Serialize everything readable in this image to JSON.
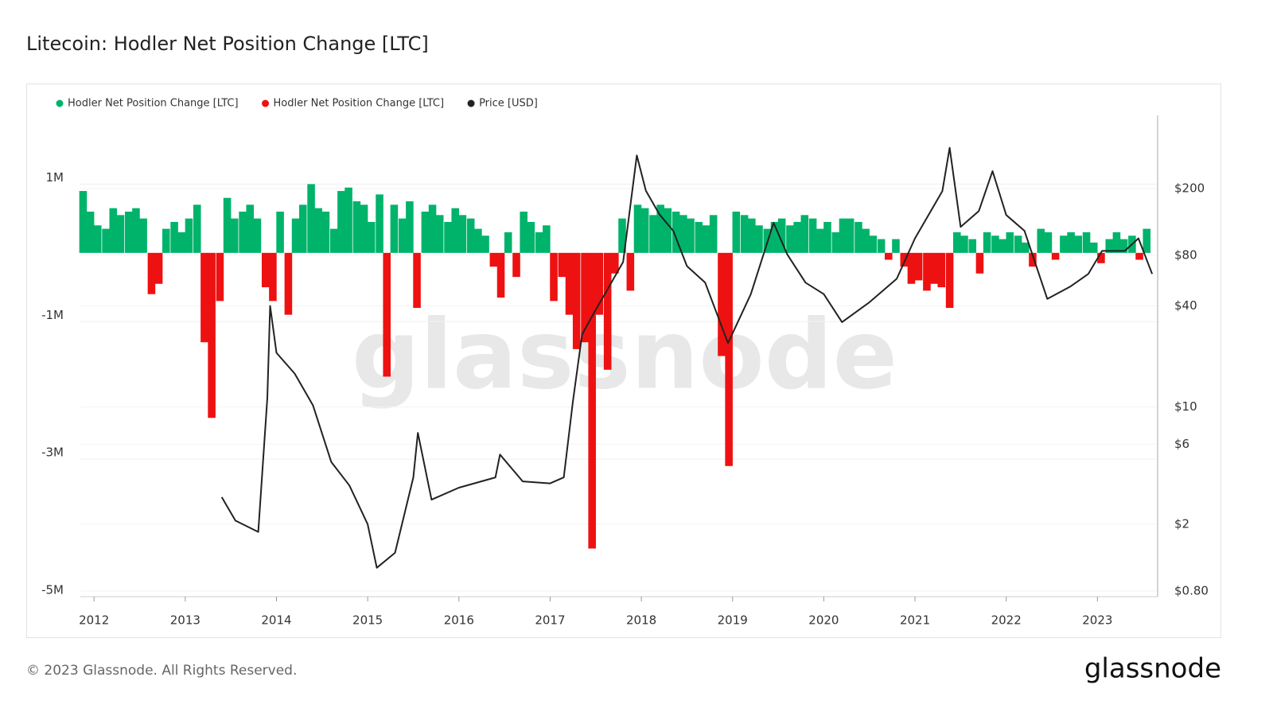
{
  "chart_data": {
    "type": "bar",
    "title": "Litecoin: Hodler Net Position Change [LTC]",
    "watermark": "glassnode",
    "footer": "© 2023 Glassnode. All Rights Reserved.",
    "logo": "glassnode",
    "x": [
      2011.88,
      2011.96,
      2012.04,
      2012.13,
      2012.21,
      2012.29,
      2012.38,
      2012.46,
      2012.54,
      2012.63,
      2012.71,
      2012.79,
      2012.88,
      2012.96,
      2013.04,
      2013.13,
      2013.21,
      2013.29,
      2013.38,
      2013.46,
      2013.54,
      2013.63,
      2013.71,
      2013.79,
      2013.88,
      2013.96,
      2014.04,
      2014.13,
      2014.21,
      2014.29,
      2014.38,
      2014.46,
      2014.54,
      2014.63,
      2014.71,
      2014.79,
      2014.88,
      2014.96,
      2015.04,
      2015.13,
      2015.21,
      2015.29,
      2015.38,
      2015.46,
      2015.54,
      2015.63,
      2015.71,
      2015.79,
      2015.88,
      2015.96,
      2016.04,
      2016.13,
      2016.21,
      2016.29,
      2016.38,
      2016.46,
      2016.54,
      2016.63,
      2016.71,
      2016.79,
      2016.88,
      2016.96,
      2017.04,
      2017.13,
      2017.21,
      2017.29,
      2017.38,
      2017.46,
      2017.54,
      2017.63,
      2017.71,
      2017.79,
      2017.88,
      2017.96,
      2018.04,
      2018.13,
      2018.21,
      2018.29,
      2018.38,
      2018.46,
      2018.54,
      2018.63,
      2018.71,
      2018.79,
      2018.88,
      2018.96,
      2019.04,
      2019.13,
      2019.21,
      2019.29,
      2019.38,
      2019.46,
      2019.54,
      2019.63,
      2019.71,
      2019.79,
      2019.88,
      2019.96,
      2020.04,
      2020.13,
      2020.21,
      2020.29,
      2020.38,
      2020.46,
      2020.54,
      2020.63,
      2020.71,
      2020.79,
      2020.88,
      2020.96,
      2021.04,
      2021.13,
      2021.21,
      2021.29,
      2021.38,
      2021.46,
      2021.54,
      2021.63,
      2021.71,
      2021.79,
      2021.88,
      2021.96,
      2022.04,
      2022.13,
      2022.21,
      2022.29,
      2022.38,
      2022.46,
      2022.54,
      2022.63,
      2022.71,
      2022.79,
      2022.88,
      2022.96,
      2023.04,
      2023.13,
      2023.21,
      2023.29,
      2023.38,
      2023.46,
      2023.54
    ],
    "series": [
      {
        "name": "Hodler Net Position Change [LTC]",
        "color": "#00b36b",
        "values": [
          900000,
          600000,
          400000,
          350000,
          650000,
          550000,
          600000,
          650000,
          500000,
          null,
          null,
          350000,
          450000,
          300000,
          500000,
          700000,
          null,
          null,
          null,
          800000,
          500000,
          600000,
          700000,
          500000,
          null,
          null,
          600000,
          null,
          500000,
          700000,
          1000000,
          650000,
          600000,
          350000,
          900000,
          950000,
          750000,
          700000,
          450000,
          850000,
          null,
          700000,
          500000,
          750000,
          null,
          600000,
          700000,
          550000,
          450000,
          650000,
          550000,
          500000,
          350000,
          250000,
          null,
          null,
          300000,
          null,
          600000,
          450000,
          300000,
          400000,
          null,
          null,
          null,
          null,
          null,
          null,
          null,
          null,
          null,
          500000,
          null,
          700000,
          650000,
          550000,
          700000,
          650000,
          600000,
          550000,
          500000,
          450000,
          400000,
          550000,
          null,
          null,
          600000,
          550000,
          500000,
          400000,
          350000,
          450000,
          500000,
          400000,
          450000,
          550000,
          500000,
          350000,
          450000,
          300000,
          500000,
          500000,
          450000,
          350000,
          250000,
          200000,
          null,
          200000,
          null,
          null,
          null,
          null,
          null,
          null,
          null,
          300000,
          250000,
          200000,
          null,
          300000,
          250000,
          200000,
          300000,
          250000,
          150000,
          null,
          350000,
          300000,
          null,
          250000,
          300000,
          250000,
          300000,
          150000,
          null,
          200000,
          300000,
          200000,
          250000,
          null,
          350000
        ]
      },
      {
        "name": "Hodler Net Position Change [LTC]",
        "color": "#ee1111",
        "values": [
          null,
          null,
          null,
          null,
          null,
          null,
          null,
          null,
          null,
          -600000,
          -450000,
          null,
          null,
          null,
          null,
          null,
          -1300000,
          -2400000,
          -700000,
          null,
          null,
          null,
          null,
          null,
          -500000,
          -700000,
          null,
          -900000,
          null,
          null,
          null,
          null,
          null,
          null,
          null,
          null,
          null,
          null,
          null,
          null,
          -1800000,
          null,
          null,
          null,
          -800000,
          null,
          null,
          null,
          null,
          null,
          null,
          null,
          null,
          null,
          -200000,
          -650000,
          null,
          -350000,
          null,
          null,
          null,
          null,
          -700000,
          -350000,
          -900000,
          -1400000,
          -1300000,
          -4300000,
          -900000,
          -1700000,
          -300000,
          null,
          -550000,
          null,
          null,
          null,
          null,
          null,
          null,
          null,
          null,
          null,
          null,
          null,
          -1500000,
          -3100000,
          null,
          null,
          null,
          null,
          null,
          null,
          null,
          null,
          null,
          null,
          null,
          null,
          null,
          null,
          null,
          null,
          null,
          null,
          null,
          null,
          -100000,
          null,
          -200000,
          -450000,
          -400000,
          -550000,
          -450000,
          -500000,
          -800000,
          null,
          null,
          null,
          -300000,
          null,
          null,
          null,
          null,
          null,
          null,
          -200000,
          null,
          null,
          -100000,
          null,
          null,
          null,
          null,
          null,
          -150000,
          null,
          null,
          null,
          null,
          -100000,
          null
        ]
      },
      {
        "name": "Price [USD]",
        "color": "#222222",
        "axis": "y2",
        "type": "line",
        "x": [
          2013.4,
          2013.55,
          2013.8,
          2013.9,
          2013.93,
          2014.0,
          2014.2,
          2014.4,
          2014.6,
          2014.8,
          2015.0,
          2015.1,
          2015.3,
          2015.5,
          2015.55,
          2015.7,
          2016.0,
          2016.4,
          2016.45,
          2016.7,
          2017.0,
          2017.15,
          2017.25,
          2017.35,
          2017.5,
          2017.6,
          2017.8,
          2017.95,
          2018.05,
          2018.2,
          2018.35,
          2018.5,
          2018.7,
          2018.95,
          2019.2,
          2019.45,
          2019.6,
          2019.8,
          2020.0,
          2020.2,
          2020.5,
          2020.8,
          2021.0,
          2021.3,
          2021.38,
          2021.5,
          2021.7,
          2021.85,
          2022.0,
          2022.2,
          2022.45,
          2022.7,
          2022.9,
          2023.05,
          2023.3,
          2023.45,
          2023.6
        ],
        "values": [
          2.9,
          2.1,
          1.8,
          11.3,
          40,
          21,
          15.8,
          10.2,
          4.7,
          3.4,
          2.0,
          1.1,
          1.35,
          3.8,
          7.0,
          2.8,
          3.3,
          3.8,
          5.2,
          3.6,
          3.5,
          3.8,
          10.8,
          27,
          38,
          47,
          73,
          315,
          194,
          140,
          112,
          69,
          55,
          24,
          47,
          125,
          81,
          55,
          47,
          32,
          42,
          58,
          101,
          193,
          350,
          118,
          147,
          254,
          139,
          112,
          44,
          52,
          62,
          85,
          85,
          101,
          62
        ]
      }
    ],
    "xlim": [
      2011.85,
      2023.66
    ],
    "xticks": [
      2012,
      2013,
      2014,
      2015,
      2016,
      2017,
      2018,
      2019,
      2020,
      2021,
      2022,
      2023
    ],
    "ylim": [
      -5000000,
      2000000
    ],
    "yticks": [
      {
        "value": 1000000,
        "label": "1M"
      },
      {
        "value": -1000000,
        "label": "-1M"
      },
      {
        "value": -3000000,
        "label": "-3M"
      },
      {
        "value": -5000000,
        "label": "-5M"
      }
    ],
    "y2lim": [
      0.74,
      546
    ],
    "y2log": true,
    "y2ticks": [
      {
        "value": 200,
        "label": "$200"
      },
      {
        "value": 80,
        "label": "$80"
      },
      {
        "value": 40,
        "label": "$40"
      },
      {
        "value": 10,
        "label": "$10"
      },
      {
        "value": 6,
        "label": "$6"
      },
      {
        "value": 2,
        "label": "$2"
      },
      {
        "value": 0.8,
        "label": "$0.80"
      }
    ],
    "grid": true,
    "legend": "top-left"
  }
}
